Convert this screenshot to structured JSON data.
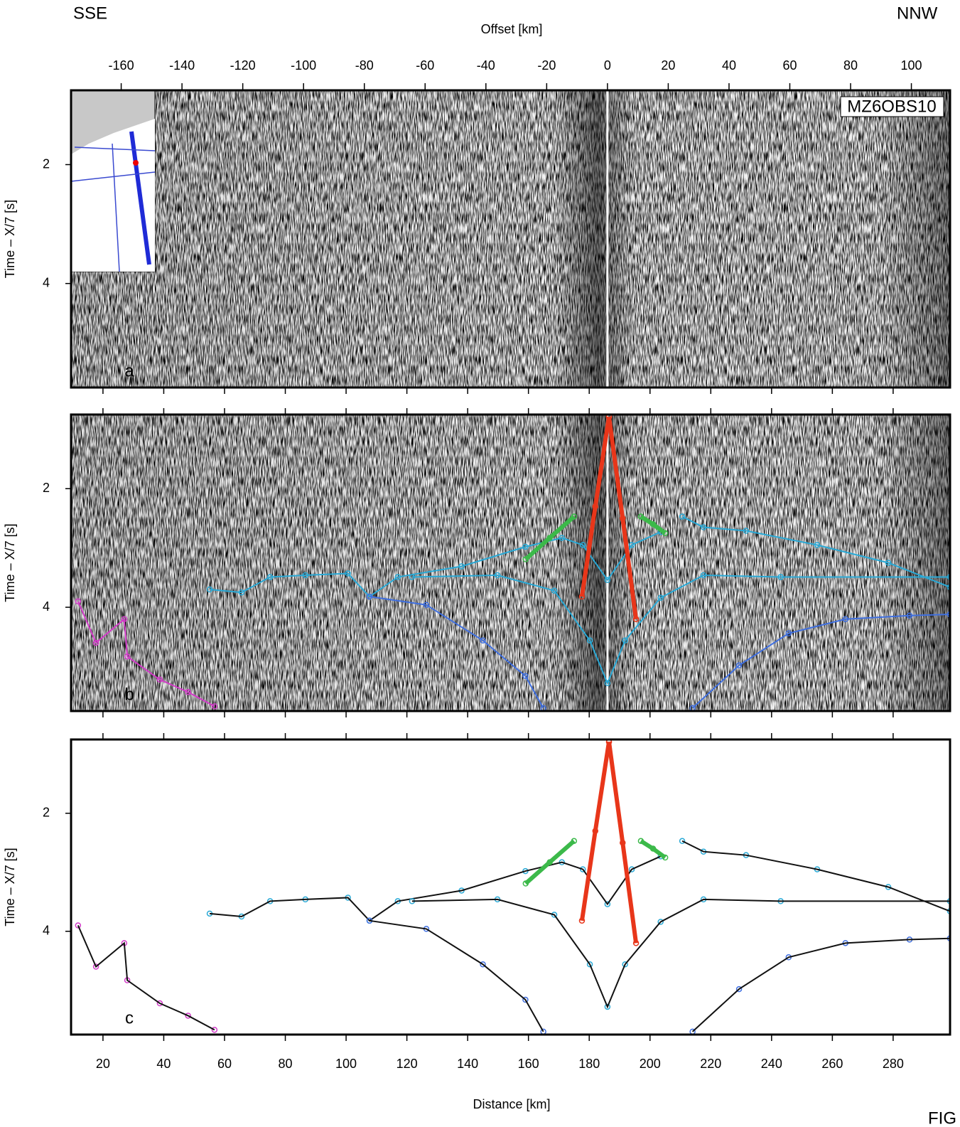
{
  "chart_data": {
    "type": "scatter",
    "corner_left": "SSE",
    "corner_right": "NNW",
    "top_axis": {
      "label": "Offset [km]",
      "lim": [
        -176.5,
        116
      ],
      "ticks": [
        -160,
        -140,
        -120,
        -100,
        -80,
        -60,
        -40,
        -20,
        0,
        20,
        40,
        60,
        80,
        100
      ]
    },
    "x_label": "Distance [km]",
    "xlim": [
      9.5,
      302
    ],
    "xticks": [
      20,
      40,
      60,
      80,
      100,
      120,
      140,
      160,
      180,
      200,
      220,
      240,
      260,
      280
    ],
    "y_label": "Time – X/7 [s]",
    "ylim": [
      0.75,
      5.75
    ],
    "yticks": [
      2,
      4
    ],
    "station": "MZ6OBS10",
    "footer": "FIG",
    "panels": [
      {
        "label": "a",
        "background": "seismic",
        "picks": false,
        "map": true
      },
      {
        "label": "b",
        "background": "seismic",
        "picks": true,
        "map": false
      },
      {
        "label": "c",
        "background": "none",
        "picks": true,
        "map": false
      }
    ],
    "series": [
      {
        "color": "#29a9d6",
        "x": [
          55.1,
          65.6,
          75,
          86.6,
          100.6,
          107.7,
          117,
          138,
          159,
          171,
          177.9,
          186,
          194,
          203.5,
          207,
          210.6,
          217.6,
          231.6,
          255,
          278.4,
          298.7
        ],
        "values": [
          3.7,
          3.75,
          3.49,
          3.46,
          3.43,
          3.82,
          3.49,
          3.31,
          2.98,
          2.83,
          2.95,
          3.54,
          2.95,
          2.73,
          null,
          2.47,
          2.65,
          2.71,
          2.95,
          3.25,
          3.66
        ]
      },
      {
        "color": "#29a9d6",
        "x": [
          121.7,
          149.8,
          168.5,
          180.2,
          186,
          191.8,
          203.5,
          217.6,
          243,
          298.7
        ],
        "values": [
          3.49,
          3.46,
          3.72,
          4.56,
          5.28,
          4.56,
          3.84,
          3.46,
          3.49,
          3.49
        ]
      },
      {
        "color": "#3f6fe0",
        "x": [
          107.7,
          126.4,
          145,
          159,
          164.9,
          190,
          214,
          229.3,
          245.6,
          264.3,
          285.4,
          298.7
        ],
        "values": [
          3.82,
          3.96,
          4.56,
          5.16,
          5.7,
          null,
          5.7,
          4.98,
          4.44,
          4.2,
          4.14,
          4.12
        ]
      },
      {
        "color": "#d23ac8",
        "x": [
          11.8,
          17.7,
          27,
          28,
          38.7,
          48,
          56.7
        ],
        "values": [
          3.9,
          4.6,
          4.2,
          4.83,
          5.22,
          5.43,
          5.67
        ]
      },
      {
        "color": "#e8361a",
        "x": [
          186.5,
          182,
          177.6
        ],
        "values": [
          0.79,
          2.3,
          3.82
        ]
      },
      {
        "color": "#e8361a",
        "x": [
          186.5,
          191,
          195.4
        ],
        "values": [
          0.79,
          2.5,
          4.2
        ]
      },
      {
        "color": "#3cb94a",
        "x": [
          175,
          167,
          159.1
        ],
        "values": [
          2.47,
          2.83,
          3.19
        ]
      },
      {
        "color": "#3cb94a",
        "x": [
          197,
          201,
          205
        ],
        "values": [
          2.47,
          2.6,
          2.75
        ]
      }
    ]
  }
}
